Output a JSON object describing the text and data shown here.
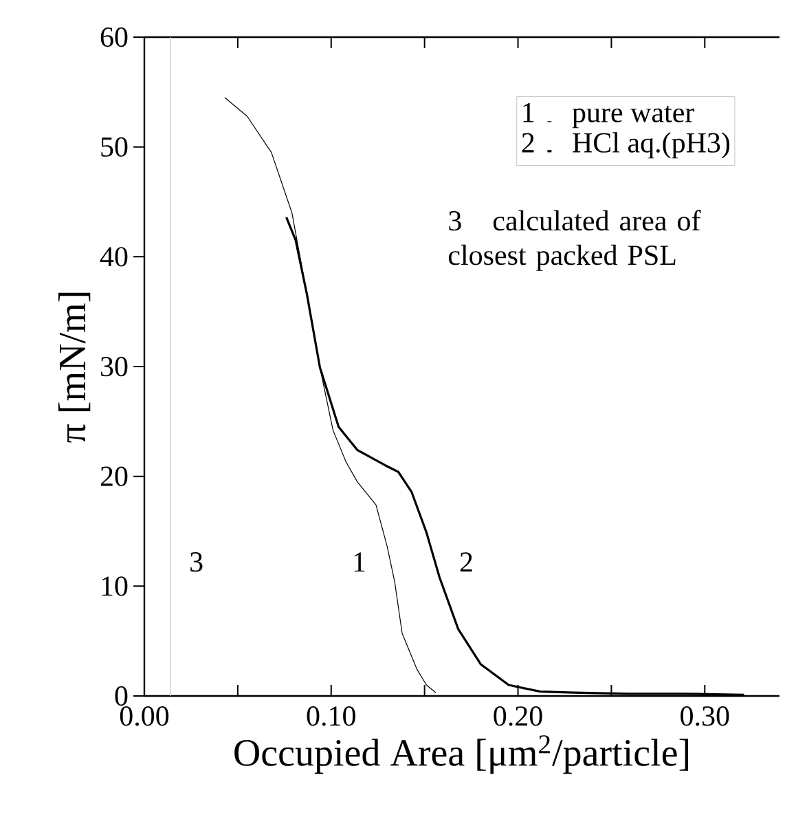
{
  "chart_data": {
    "type": "line",
    "xlabel": "Occupied Area [μm$^{2}$/particle]",
    "ylabel": "π [mN/m]",
    "xlim": [
      0,
      0.34
    ],
    "ylim": [
      0,
      60
    ],
    "xticks": [
      {
        "value": 0,
        "label": "0.00"
      },
      {
        "value": 0.05,
        "label": null
      },
      {
        "value": 0.1,
        "label": "0.10"
      },
      {
        "value": 0.15,
        "label": null
      },
      {
        "value": 0.2,
        "label": "0.20"
      },
      {
        "value": 0.25,
        "label": null
      },
      {
        "value": 0.3,
        "label": "0.30"
      }
    ],
    "yticks": [
      0,
      10,
      20,
      30,
      40,
      50,
      60
    ],
    "legend": "top right",
    "series": [
      {
        "name": "pure water",
        "color": "#000000",
        "x": [
          0.043,
          0.055,
          0.068,
          0.079,
          0.087,
          0.094,
          0.101,
          0.108,
          0.114,
          0.124,
          0.13,
          0.134,
          0.138,
          0.146,
          0.151,
          0.156
        ],
        "values": [
          54.5,
          52.8,
          49.5,
          44,
          36.6,
          29.9,
          24.2,
          21.3,
          19.5,
          17.4,
          13.6,
          10.4,
          5.7,
          2.4,
          1.0,
          0.3
        ]
      },
      {
        "name": "HCl aq.(pH3)",
        "color": "#000000",
        "x": [
          0.076,
          0.081,
          0.087,
          0.094,
          0.097,
          0.104,
          0.114,
          0.129,
          0.136,
          0.143,
          0.151,
          0.158,
          0.168,
          0.18,
          0.195,
          0.212,
          0.23,
          0.26,
          0.29,
          0.321
        ],
        "values": [
          43.6,
          41.5,
          36.6,
          29.9,
          28.3,
          24.5,
          22.4,
          21,
          20.4,
          18.6,
          14.9,
          10.8,
          6.1,
          2.9,
          1.0,
          0.4,
          0.3,
          0.2,
          0.2,
          0.1
        ]
      }
    ],
    "ref_lines": [
      {
        "axis": "x",
        "value": 0.014,
        "color": "#c8c8c8"
      }
    ],
    "annotations": [
      "1",
      "2",
      "3",
      "calculated area of closest packed PSL"
    ]
  }
}
